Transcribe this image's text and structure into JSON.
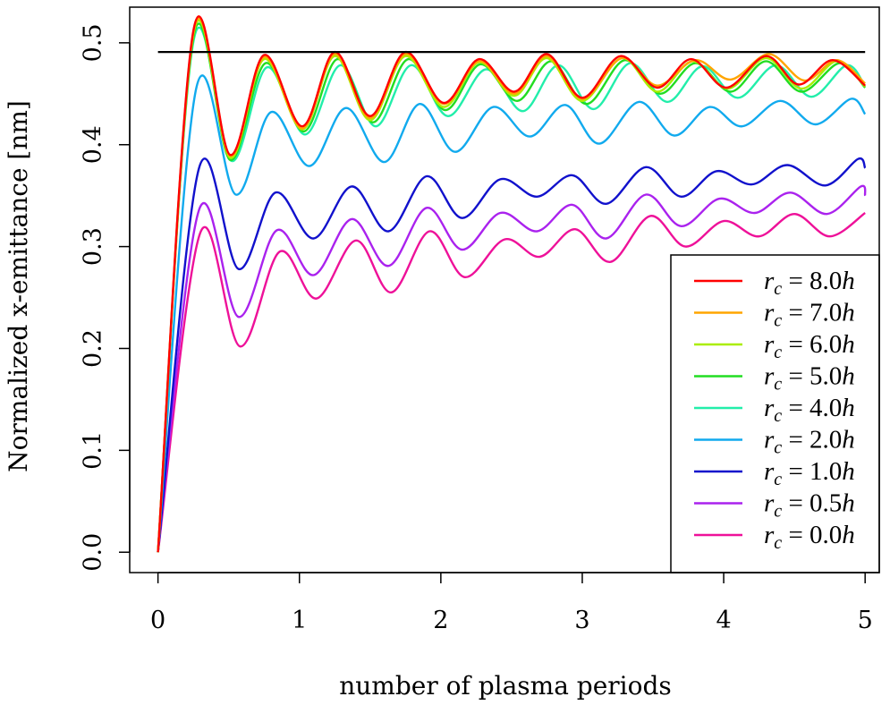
{
  "chart_data": {
    "type": "line",
    "title": "",
    "xlabel": "number of plasma periods",
    "ylabel": "Normalized x-emittance [nm]",
    "xlim": [
      -0.2,
      5.1
    ],
    "ylim": [
      -0.02,
      0.535
    ],
    "x_ticks": [
      0,
      1,
      2,
      3,
      4,
      5
    ],
    "x_tick_labels": [
      "0",
      "1",
      "2",
      "3",
      "4",
      "5"
    ],
    "y_ticks": [
      0.0,
      0.1,
      0.2,
      0.3,
      0.4,
      0.5
    ],
    "y_tick_labels": [
      "0.0",
      "0.1",
      "0.2",
      "0.3",
      "0.4",
      "0.5"
    ],
    "grid": false,
    "legend_position": "bottom-right",
    "reference_line": {
      "y": 0.491,
      "x_range": [
        0,
        5
      ],
      "color": "#000000"
    },
    "series": [
      {
        "name": "r_c = 8.0h",
        "label_sym": "r",
        "label_sub": "c",
        "label_value": " = 8.0",
        "label_unit": "h",
        "color": "#ff0000",
        "points": [
          [
            0,
            0.0
          ],
          [
            0.25,
            0.512
          ],
          [
            0.51,
            0.39
          ],
          [
            0.75,
            0.488
          ],
          [
            1.02,
            0.418
          ],
          [
            1.25,
            0.491
          ],
          [
            1.5,
            0.428
          ],
          [
            1.75,
            0.491
          ],
          [
            2.02,
            0.441
          ],
          [
            2.27,
            0.484
          ],
          [
            2.52,
            0.452
          ],
          [
            2.75,
            0.489
          ],
          [
            3.0,
            0.446
          ],
          [
            3.27,
            0.487
          ],
          [
            3.53,
            0.456
          ],
          [
            3.77,
            0.484
          ],
          [
            4.02,
            0.456
          ],
          [
            4.3,
            0.487
          ],
          [
            4.53,
            0.459
          ],
          [
            4.77,
            0.483
          ],
          [
            5.0,
            0.458
          ]
        ]
      },
      {
        "name": "r_c = 7.0h",
        "label_sym": "r",
        "label_sub": "c",
        "label_value": " = 7.0",
        "label_unit": "h",
        "color": "#ffa500",
        "points": [
          [
            0,
            0.0
          ],
          [
            0.25,
            0.51
          ],
          [
            0.51,
            0.389
          ],
          [
            0.75,
            0.486
          ],
          [
            1.02,
            0.416
          ],
          [
            1.25,
            0.489
          ],
          [
            1.5,
            0.426
          ],
          [
            1.75,
            0.489
          ],
          [
            2.02,
            0.44
          ],
          [
            2.27,
            0.482
          ],
          [
            2.52,
            0.45
          ],
          [
            2.75,
            0.487
          ],
          [
            3.0,
            0.445
          ],
          [
            3.28,
            0.485
          ],
          [
            3.53,
            0.458
          ],
          [
            3.8,
            0.483
          ],
          [
            4.05,
            0.464
          ],
          [
            4.32,
            0.489
          ],
          [
            4.57,
            0.463
          ],
          [
            4.8,
            0.483
          ],
          [
            5.0,
            0.46
          ]
        ]
      },
      {
        "name": "r_c = 6.0h",
        "label_sym": "r",
        "label_sub": "c",
        "label_value": " = 6.0",
        "label_unit": "h",
        "color": "#aaee00",
        "points": [
          [
            0,
            0.0
          ],
          [
            0.25,
            0.508
          ],
          [
            0.51,
            0.387
          ],
          [
            0.75,
            0.484
          ],
          [
            1.02,
            0.415
          ],
          [
            1.25,
            0.487
          ],
          [
            1.5,
            0.424
          ],
          [
            1.75,
            0.487
          ],
          [
            2.02,
            0.437
          ],
          [
            2.27,
            0.481
          ],
          [
            2.52,
            0.448
          ],
          [
            2.75,
            0.485
          ],
          [
            3.0,
            0.443
          ],
          [
            3.28,
            0.485
          ],
          [
            3.53,
            0.452
          ],
          [
            3.78,
            0.482
          ],
          [
            4.03,
            0.455
          ],
          [
            4.3,
            0.485
          ],
          [
            4.55,
            0.455
          ],
          [
            4.8,
            0.482
          ],
          [
            5.0,
            0.457
          ]
        ]
      },
      {
        "name": "r_c = 5.0h",
        "label_sym": "r",
        "label_sub": "c",
        "label_value": " = 5.0",
        "label_unit": "h",
        "color": "#22dd22",
        "points": [
          [
            0,
            0.0
          ],
          [
            0.25,
            0.505
          ],
          [
            0.51,
            0.385
          ],
          [
            0.76,
            0.48
          ],
          [
            1.03,
            0.413
          ],
          [
            1.27,
            0.484
          ],
          [
            1.52,
            0.422
          ],
          [
            1.77,
            0.484
          ],
          [
            2.03,
            0.434
          ],
          [
            2.28,
            0.479
          ],
          [
            2.54,
            0.443
          ],
          [
            2.78,
            0.482
          ],
          [
            3.03,
            0.44
          ],
          [
            3.3,
            0.483
          ],
          [
            3.55,
            0.45
          ],
          [
            3.8,
            0.48
          ],
          [
            4.05,
            0.452
          ],
          [
            4.3,
            0.482
          ],
          [
            4.55,
            0.452
          ],
          [
            4.82,
            0.48
          ],
          [
            5.0,
            0.456
          ]
        ]
      },
      {
        "name": "r_c = 4.0h",
        "label_sym": "r",
        "label_sub": "c",
        "label_value": " = 4.0",
        "label_unit": "h",
        "color": "#22eeaa",
        "points": [
          [
            0,
            0.0
          ],
          [
            0.25,
            0.501
          ],
          [
            0.52,
            0.384
          ],
          [
            0.77,
            0.476
          ],
          [
            1.04,
            0.41
          ],
          [
            1.29,
            0.478
          ],
          [
            1.54,
            0.418
          ],
          [
            1.79,
            0.478
          ],
          [
            2.05,
            0.428
          ],
          [
            2.32,
            0.474
          ],
          [
            2.58,
            0.433
          ],
          [
            2.83,
            0.478
          ],
          [
            3.08,
            0.435
          ],
          [
            3.34,
            0.48
          ],
          [
            3.6,
            0.442
          ],
          [
            3.85,
            0.477
          ],
          [
            4.1,
            0.446
          ],
          [
            4.37,
            0.478
          ],
          [
            4.62,
            0.447
          ],
          [
            4.87,
            0.478
          ],
          [
            5.0,
            0.457
          ]
        ]
      },
      {
        "name": "r_c = 2.0h",
        "label_sym": "r",
        "label_sub": "c",
        "label_value": " = 2.0",
        "label_unit": "h",
        "color": "#11aaee",
        "points": [
          [
            0,
            0.0
          ],
          [
            0.27,
            0.455
          ],
          [
            0.55,
            0.351
          ],
          [
            0.8,
            0.432
          ],
          [
            1.07,
            0.379
          ],
          [
            1.33,
            0.436
          ],
          [
            1.6,
            0.383
          ],
          [
            1.85,
            0.44
          ],
          [
            2.1,
            0.393
          ],
          [
            2.37,
            0.437
          ],
          [
            2.63,
            0.408
          ],
          [
            2.88,
            0.439
          ],
          [
            3.12,
            0.401
          ],
          [
            3.4,
            0.442
          ],
          [
            3.65,
            0.409
          ],
          [
            3.9,
            0.437
          ],
          [
            4.13,
            0.418
          ],
          [
            4.4,
            0.443
          ],
          [
            4.65,
            0.42
          ],
          [
            4.9,
            0.445
          ],
          [
            5.0,
            0.43
          ]
        ]
      },
      {
        "name": "r_c = 1.0h",
        "label_sym": "r",
        "label_sub": "c",
        "label_value": " = 1.0",
        "label_unit": "h",
        "color": "#1111cc",
        "points": [
          [
            0,
            0.0
          ],
          [
            0.29,
            0.377
          ],
          [
            0.57,
            0.278
          ],
          [
            0.83,
            0.353
          ],
          [
            1.1,
            0.308
          ],
          [
            1.37,
            0.359
          ],
          [
            1.63,
            0.315
          ],
          [
            1.9,
            0.369
          ],
          [
            2.15,
            0.328
          ],
          [
            2.42,
            0.366
          ],
          [
            2.68,
            0.349
          ],
          [
            2.93,
            0.37
          ],
          [
            3.17,
            0.342
          ],
          [
            3.45,
            0.378
          ],
          [
            3.7,
            0.349
          ],
          [
            3.95,
            0.374
          ],
          [
            4.2,
            0.361
          ],
          [
            4.45,
            0.38
          ],
          [
            4.72,
            0.36
          ],
          [
            4.95,
            0.386
          ],
          [
            5.0,
            0.377
          ]
        ]
      },
      {
        "name": "r_c = 0.5h",
        "label_sym": "r",
        "label_sub": "c",
        "label_value": " = 0.5",
        "label_unit": "h",
        "color": "#aa22ee",
        "points": [
          [
            0,
            0.0
          ],
          [
            0.29,
            0.336
          ],
          [
            0.57,
            0.231
          ],
          [
            0.84,
            0.316
          ],
          [
            1.1,
            0.272
          ],
          [
            1.37,
            0.327
          ],
          [
            1.63,
            0.281
          ],
          [
            1.9,
            0.338
          ],
          [
            2.15,
            0.297
          ],
          [
            2.42,
            0.333
          ],
          [
            2.68,
            0.315
          ],
          [
            2.93,
            0.341
          ],
          [
            3.17,
            0.308
          ],
          [
            3.45,
            0.351
          ],
          [
            3.7,
            0.32
          ],
          [
            3.97,
            0.347
          ],
          [
            4.22,
            0.333
          ],
          [
            4.47,
            0.353
          ],
          [
            4.73,
            0.332
          ],
          [
            4.97,
            0.359
          ],
          [
            5.0,
            0.35
          ]
        ]
      },
      {
        "name": "r_c = 0.0h",
        "label_sym": "r",
        "label_sub": "c",
        "label_value": " = 0.0",
        "label_unit": "h",
        "color": "#ee1199",
        "points": [
          [
            0,
            0.0
          ],
          [
            0.3,
            0.314
          ],
          [
            0.58,
            0.202
          ],
          [
            0.86,
            0.295
          ],
          [
            1.12,
            0.249
          ],
          [
            1.4,
            0.306
          ],
          [
            1.65,
            0.255
          ],
          [
            1.92,
            0.315
          ],
          [
            2.17,
            0.27
          ],
          [
            2.45,
            0.307
          ],
          [
            2.7,
            0.29
          ],
          [
            2.95,
            0.317
          ],
          [
            3.2,
            0.285
          ],
          [
            3.48,
            0.33
          ],
          [
            3.73,
            0.3
          ],
          [
            4.0,
            0.325
          ],
          [
            4.25,
            0.31
          ],
          [
            4.5,
            0.332
          ],
          [
            4.75,
            0.31
          ],
          [
            5.0,
            0.333
          ]
        ]
      }
    ]
  }
}
